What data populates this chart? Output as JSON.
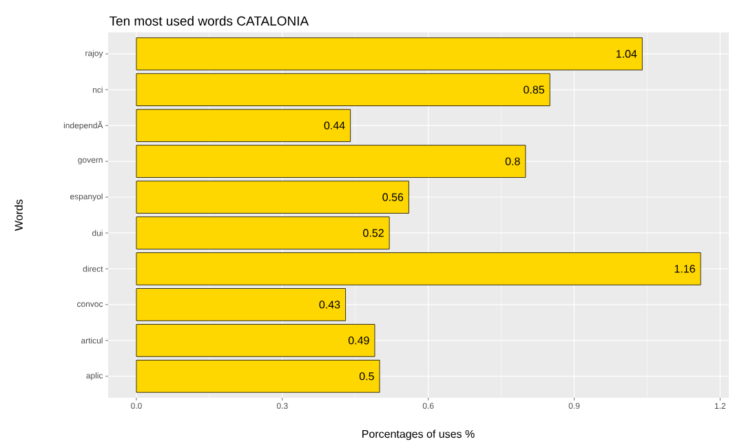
{
  "chart_data": {
    "type": "bar",
    "orientation": "horizontal",
    "title": "Ten most used words CATALONIA",
    "xlabel": "Porcentages of uses %",
    "ylabel": "Words",
    "categories": [
      "rajoy",
      "nci",
      "independÃ",
      "govern",
      "espanyol",
      "dui",
      "direct",
      "convoc",
      "articul",
      "aplic"
    ],
    "values": [
      1.04,
      0.85,
      0.44,
      0.8,
      0.56,
      0.52,
      1.16,
      0.43,
      0.49,
      0.5
    ],
    "color": "#ffd700",
    "data_labels": true,
    "grid": true,
    "xlim": [
      -0.058,
      1.218
    ],
    "xticks": [
      {
        "value": 0,
        "label": "0.0"
      },
      0.3,
      0.6,
      0.9,
      1.2
    ]
  }
}
